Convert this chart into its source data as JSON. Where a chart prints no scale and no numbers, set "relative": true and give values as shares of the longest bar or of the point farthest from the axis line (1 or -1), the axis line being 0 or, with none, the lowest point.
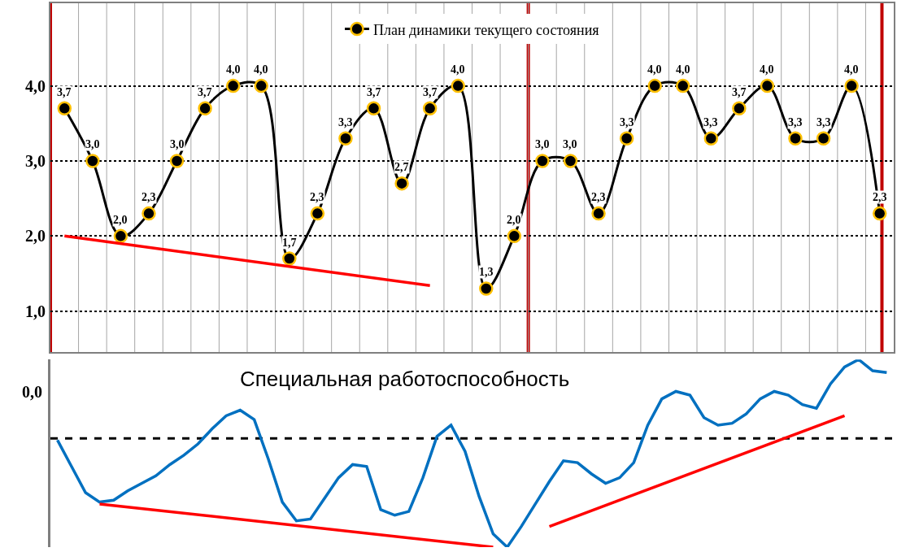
{
  "chart_data": [
    {
      "type": "line",
      "legend": "top",
      "grid": true,
      "marker": "circle",
      "line_style": "solid",
      "tick_labels": "y",
      "categories": [
        null,
        null,
        null,
        null,
        null,
        null,
        null,
        null,
        null,
        null,
        null,
        null,
        null,
        null,
        null,
        null,
        null,
        null,
        null,
        null,
        null,
        null,
        null,
        null,
        null,
        null,
        null,
        null,
        null,
        null
      ],
      "ylim": [
        0.45,
        5.1
      ],
      "yticks": [
        {
          "value": 1,
          "label": "1,0"
        },
        {
          "value": 2,
          "label": "2,0"
        },
        {
          "value": 3,
          "label": "3,0"
        },
        {
          "value": 4,
          "label": "4,0"
        }
      ],
      "series": [
        {
          "name": "План динамики текущего состояния",
          "color": "#000000",
          "values": [
            3.7,
            3.0,
            2.0,
            2.3,
            3.0,
            3.7,
            4.0,
            4.0,
            1.7,
            2.3,
            3.3,
            3.7,
            2.7,
            3.7,
            4.0,
            1.3,
            2.0,
            3.0,
            3.0,
            2.3,
            3.3,
            4.0,
            4.0,
            3.3,
            3.7,
            4.0,
            3.3,
            3.3,
            4.0,
            2.3
          ],
          "value_labels": [
            "3,7",
            "3,0",
            "2,0",
            "2,3",
            "3,0",
            "3,7",
            "4,0",
            "4,0",
            "1,7",
            "2,3",
            "3,3",
            "3,7",
            "2,7",
            "3,7",
            "4,0",
            "1,3",
            "2,0",
            "3,0",
            "3,0",
            "2,3",
            "3,3",
            "4,0",
            "4,0",
            "3,3",
            "3,7",
            "4,0",
            "3,3",
            "3,3",
            "4,0",
            "2,3"
          ]
        },
        {
          "color": "#ff0000",
          "marker": "none",
          "values": [
            2.0,
            null,
            null,
            null,
            null,
            null,
            null,
            null,
            null,
            null,
            null,
            null,
            null,
            1.34,
            null,
            null,
            null,
            null,
            null,
            null,
            null,
            null,
            null,
            null,
            null,
            null,
            null,
            null,
            null,
            null
          ]
        }
      ]
    },
    {
      "type": "line",
      "relative": true,
      "title": "Специальная работоспособность",
      "tick_labels": false,
      "categories": [
        null,
        null,
        null,
        null,
        null,
        null,
        null,
        null,
        null,
        null,
        null,
        null,
        null,
        null,
        null,
        null,
        null,
        null,
        null,
        null,
        null,
        null,
        null,
        null,
        null,
        null,
        null,
        null,
        null,
        null,
        null,
        null,
        null,
        null,
        null,
        null,
        null,
        null,
        null,
        null,
        null,
        null,
        null,
        null,
        null,
        null,
        null,
        null,
        null,
        null,
        null,
        null,
        null,
        null,
        null,
        null,
        null,
        null,
        null,
        null
      ],
      "annotations": [
        "0,0"
      ],
      "series": [
        {
          "color": "#0070c0",
          "values": [
            0.57,
            0.43,
            0.29,
            0.24,
            0.25,
            0.3,
            0.34,
            0.38,
            0.44,
            0.49,
            0.55,
            0.63,
            0.7,
            0.73,
            0.68,
            0.47,
            0.24,
            0.14,
            0.15,
            0.26,
            0.37,
            0.44,
            0.43,
            0.2,
            0.17,
            0.19,
            0.37,
            0.59,
            0.65,
            0.51,
            0.27,
            0.07,
            0.0,
            0.11,
            0.23,
            0.35,
            0.46,
            0.45,
            0.39,
            0.34,
            0.37,
            0.45,
            0.65,
            0.79,
            0.83,
            0.81,
            0.69,
            0.65,
            0.66,
            0.71,
            0.79,
            0.83,
            0.81,
            0.76,
            0.74,
            0.87,
            0.96,
            1.0,
            0.94,
            0.93
          ]
        },
        {
          "color": "#ff0000",
          "values": [
            null,
            null,
            null,
            0.23,
            null,
            null,
            null,
            null,
            null,
            null,
            null,
            null,
            null,
            null,
            null,
            null,
            null,
            null,
            null,
            null,
            null,
            null,
            null,
            null,
            null,
            null,
            null,
            null,
            null,
            null,
            null,
            0.0,
            null,
            null,
            null,
            null,
            null,
            null,
            null,
            null,
            null,
            null,
            null,
            null,
            null,
            null,
            null,
            null,
            null,
            null,
            null,
            null,
            null,
            null,
            null,
            null,
            null,
            null,
            null,
            null
          ]
        },
        {
          "color": "#ff0000",
          "values": [
            null,
            null,
            null,
            null,
            null,
            null,
            null,
            null,
            null,
            null,
            null,
            null,
            null,
            null,
            null,
            null,
            null,
            null,
            null,
            null,
            null,
            null,
            null,
            null,
            null,
            null,
            null,
            null,
            null,
            null,
            null,
            null,
            null,
            null,
            null,
            0.11,
            null,
            null,
            null,
            null,
            null,
            null,
            null,
            null,
            null,
            null,
            null,
            null,
            null,
            null,
            null,
            null,
            null,
            null,
            null,
            null,
            0.7,
            null,
            null,
            null
          ]
        }
      ],
      "ref_lines": [
        {
          "axis": "y",
          "value": 0.58,
          "label": null,
          "color": "#000000",
          "line_style": "dashed"
        }
      ]
    }
  ]
}
